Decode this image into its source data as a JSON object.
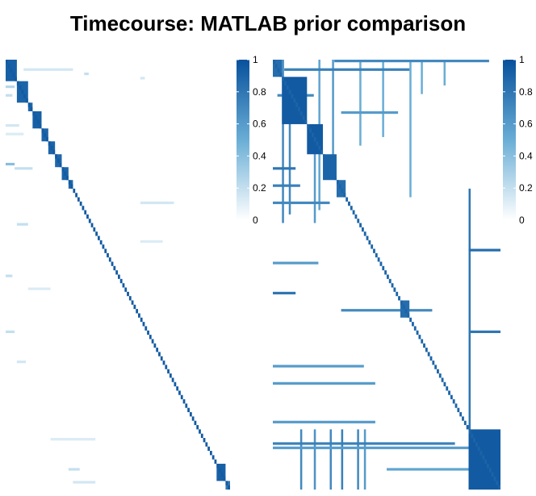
{
  "title": "Timecourse: MATLAB prior comparison",
  "colors": {
    "low": "#ffffff",
    "mid": "#6aaed6",
    "high": "#08519c",
    "background": "#ffffff"
  },
  "chart_data": [
    {
      "type": "heatmap",
      "title": "",
      "xlabel": "",
      "ylabel": "",
      "colorbar": {
        "ticks": [
          "0",
          "0.2",
          "0.4",
          "0.6",
          "0.8",
          "1"
        ],
        "range": [
          0,
          1
        ]
      },
      "n": 100,
      "clusters": [
        {
          "i0": 0,
          "i1": 5,
          "v": 0.92
        },
        {
          "i0": 5,
          "i1": 10,
          "v": 0.9
        },
        {
          "i0": 10,
          "i1": 12,
          "v": 0.88
        },
        {
          "i0": 12,
          "i1": 16,
          "v": 0.92
        },
        {
          "i0": 16,
          "i1": 19,
          "v": 0.9
        },
        {
          "i0": 19,
          "i1": 22,
          "v": 0.9
        },
        {
          "i0": 22,
          "i1": 25,
          "v": 0.88
        },
        {
          "i0": 25,
          "i1": 28,
          "v": 0.9
        },
        {
          "i0": 28,
          "i1": 30,
          "v": 0.88
        },
        {
          "i0": 94,
          "i1": 98,
          "v": 0.92
        },
        {
          "i0": 98,
          "i1": 100,
          "v": 0.8
        }
      ],
      "diagonal_value": 0.95,
      "scatter": [
        {
          "r": 2,
          "c0": 8,
          "c1": 30,
          "v": 0.15
        },
        {
          "r": 6,
          "c0": 0,
          "c1": 4,
          "v": 0.25
        },
        {
          "r": 3,
          "c0": 35,
          "c1": 37,
          "v": 0.2
        },
        {
          "r": 4,
          "c0": 60,
          "c1": 62,
          "v": 0.15
        },
        {
          "r": 8,
          "c0": 0,
          "c1": 3,
          "v": 0.2
        },
        {
          "r": 15,
          "c0": 0,
          "c1": 6,
          "v": 0.15
        },
        {
          "r": 17,
          "c0": 0,
          "c1": 8,
          "v": 0.12
        },
        {
          "r": 24,
          "c0": 0,
          "c1": 4,
          "v": 0.4
        },
        {
          "r": 25,
          "c0": 4,
          "c1": 12,
          "v": 0.2
        },
        {
          "r": 33,
          "c0": 60,
          "c1": 75,
          "v": 0.15
        },
        {
          "r": 38,
          "c0": 5,
          "c1": 10,
          "v": 0.2
        },
        {
          "r": 42,
          "c0": 60,
          "c1": 70,
          "v": 0.12
        },
        {
          "r": 50,
          "c0": 0,
          "c1": 3,
          "v": 0.2
        },
        {
          "r": 53,
          "c0": 10,
          "c1": 20,
          "v": 0.12
        },
        {
          "r": 63,
          "c0": 0,
          "c1": 4,
          "v": 0.2
        },
        {
          "r": 70,
          "c0": 5,
          "c1": 9,
          "v": 0.15
        },
        {
          "r": 88,
          "c0": 20,
          "c1": 40,
          "v": 0.12
        },
        {
          "r": 95,
          "c0": 28,
          "c1": 33,
          "v": 0.2
        },
        {
          "r": 98,
          "c0": 30,
          "c1": 40,
          "v": 0.15
        }
      ]
    },
    {
      "type": "heatmap",
      "title": "",
      "xlabel": "",
      "ylabel": "",
      "colorbar": {
        "ticks": [
          "0",
          "0.2",
          "0.4",
          "0.6",
          "0.8",
          "1"
        ],
        "range": [
          0,
          1
        ]
      },
      "n": 100,
      "clusters": [
        {
          "i0": 0,
          "i1": 4,
          "v": 0.85
        },
        {
          "i0": 4,
          "i1": 15,
          "v": 0.95
        },
        {
          "i0": 15,
          "i1": 22,
          "v": 0.95
        },
        {
          "i0": 22,
          "i1": 28,
          "v": 0.9
        },
        {
          "i0": 28,
          "i1": 32,
          "v": 0.85
        },
        {
          "i0": 56,
          "i1": 60,
          "v": 0.85
        },
        {
          "i0": 86,
          "i1": 100,
          "v": 0.95
        }
      ],
      "diagonal_value": 0.9,
      "scatter": [
        {
          "r": 0,
          "c0": 27,
          "c1": 95,
          "v": 0.7
        },
        {
          "r": 2,
          "c0": 5,
          "c1": 60,
          "v": 0.75
        },
        {
          "r": 8,
          "c0": 2,
          "c1": 18,
          "v": 0.7
        },
        {
          "r": 12,
          "c0": 30,
          "c1": 55,
          "v": 0.6
        },
        {
          "r": 25,
          "c0": 0,
          "c1": 10,
          "v": 0.8
        },
        {
          "r": 29,
          "c0": 0,
          "c1": 12,
          "v": 0.75
        },
        {
          "r": 33,
          "c0": 0,
          "c1": 25,
          "v": 0.7
        },
        {
          "r": 44,
          "c0": 86,
          "c1": 100,
          "v": 0.85
        },
        {
          "r": 47,
          "c0": 0,
          "c1": 20,
          "v": 0.6
        },
        {
          "r": 54,
          "c0": 0,
          "c1": 10,
          "v": 0.8
        },
        {
          "r": 58,
          "c0": 30,
          "c1": 70,
          "v": 0.7
        },
        {
          "r": 63,
          "c0": 86,
          "c1": 100,
          "v": 0.8
        },
        {
          "r": 71,
          "c0": 0,
          "c1": 40,
          "v": 0.6
        },
        {
          "r": 75,
          "c0": 0,
          "c1": 45,
          "v": 0.6
        },
        {
          "r": 84,
          "c0": 0,
          "c1": 45,
          "v": 0.6
        },
        {
          "r": 89,
          "c0": 0,
          "c1": 80,
          "v": 0.75
        },
        {
          "r": 90,
          "c0": 0,
          "c1": 90,
          "v": 0.6
        },
        {
          "r": 95,
          "c0": 50,
          "c1": 86,
          "v": 0.55
        }
      ],
      "col_stripes": [
        {
          "c": 4,
          "r0": 0,
          "r1": 38,
          "v": 0.7
        },
        {
          "c": 7,
          "r0": 10,
          "r1": 36,
          "v": 0.7
        },
        {
          "c": 18,
          "r0": 20,
          "r1": 38,
          "v": 0.6
        },
        {
          "c": 20,
          "r0": 0,
          "r1": 35,
          "v": 0.55
        },
        {
          "c": 26,
          "r0": 0,
          "r1": 25,
          "v": 0.6
        },
        {
          "c": 38,
          "r0": 0,
          "r1": 20,
          "v": 0.5
        },
        {
          "c": 48,
          "r0": 0,
          "r1": 18,
          "v": 0.5
        },
        {
          "c": 60,
          "r0": 0,
          "r1": 32,
          "v": 0.5
        },
        {
          "c": 65,
          "r0": 0,
          "r1": 8,
          "v": 0.5
        },
        {
          "c": 75,
          "r0": 0,
          "r1": 6,
          "v": 0.5
        },
        {
          "c": 86,
          "r0": 30,
          "r1": 100,
          "v": 0.8
        },
        {
          "c": 12,
          "r0": 86,
          "r1": 100,
          "v": 0.7
        },
        {
          "c": 18,
          "r0": 86,
          "r1": 100,
          "v": 0.65
        },
        {
          "c": 25,
          "r0": 86,
          "r1": 100,
          "v": 0.7
        },
        {
          "c": 30,
          "r0": 86,
          "r1": 100,
          "v": 0.75
        },
        {
          "c": 37,
          "r0": 86,
          "r1": 100,
          "v": 0.7
        },
        {
          "c": 40,
          "r0": 86,
          "r1": 100,
          "v": 0.6
        }
      ]
    }
  ]
}
